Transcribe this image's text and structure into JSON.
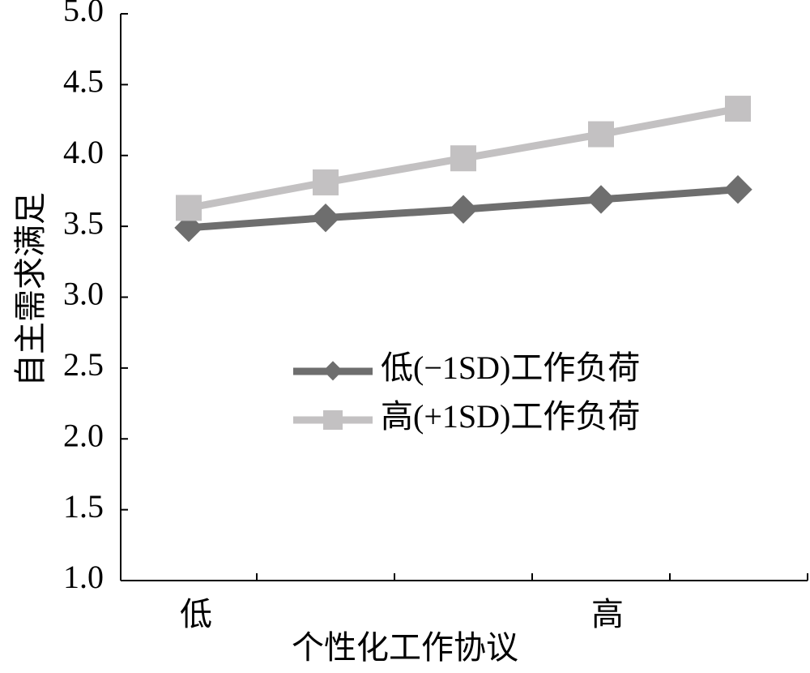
{
  "chart_data": {
    "type": "line",
    "title": "",
    "xlabel": "个性化工作协议",
    "ylabel": "自主需求满足",
    "x_tick_labels": [
      "低",
      "高"
    ],
    "ylim": [
      1.0,
      5.0
    ],
    "y_ticks": [
      "1.0",
      "1.5",
      "2.0",
      "2.5",
      "3.0",
      "3.5",
      "4.0",
      "4.5",
      "5.0"
    ],
    "legend_position": "center-right",
    "grid": false,
    "series": [
      {
        "name": "低(−1SD)工作负荷",
        "marker": "diamond",
        "color": "#6e6e6e",
        "values": [
          3.49,
          3.56,
          3.62,
          3.69,
          3.76
        ]
      },
      {
        "name": "高(+1SD)工作负荷",
        "marker": "square",
        "color": "#c3c1c2",
        "values": [
          3.63,
          3.81,
          3.98,
          4.15,
          4.33
        ]
      }
    ]
  }
}
